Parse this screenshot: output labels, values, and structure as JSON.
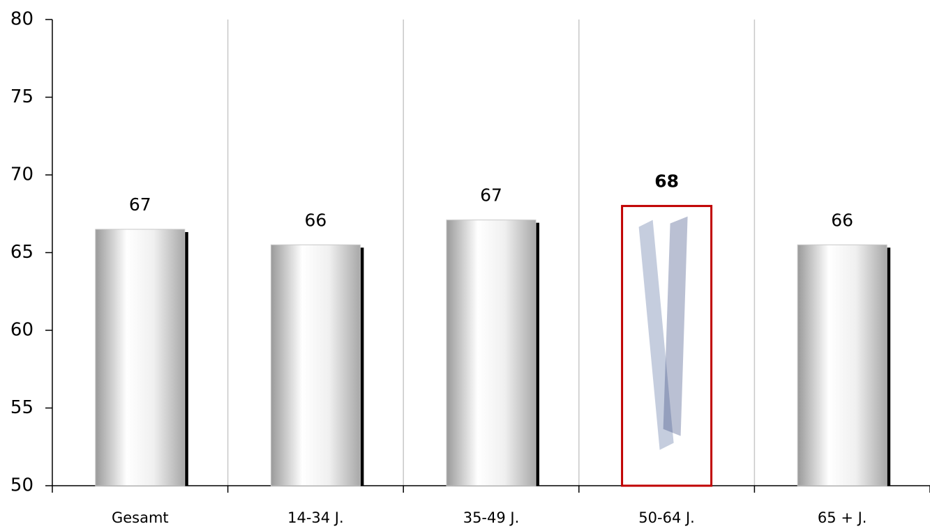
{
  "chart_data": {
    "type": "bar",
    "categories": [
      "Gesamt",
      "14-34 J.",
      "35-49 J.",
      "50-64 J.",
      "65 + J."
    ],
    "values": [
      66.5,
      65.5,
      67.1,
      68,
      65.5
    ],
    "value_labels": [
      "67",
      "66",
      "67",
      "68",
      "66"
    ],
    "color": "#b8b8b8",
    "highlight": "50-64 J.",
    "highlight_color": "#c00000",
    "ylim": [
      50,
      80
    ],
    "yticks": [
      50,
      55,
      60,
      65,
      70,
      75,
      80
    ],
    "grid": true
  }
}
